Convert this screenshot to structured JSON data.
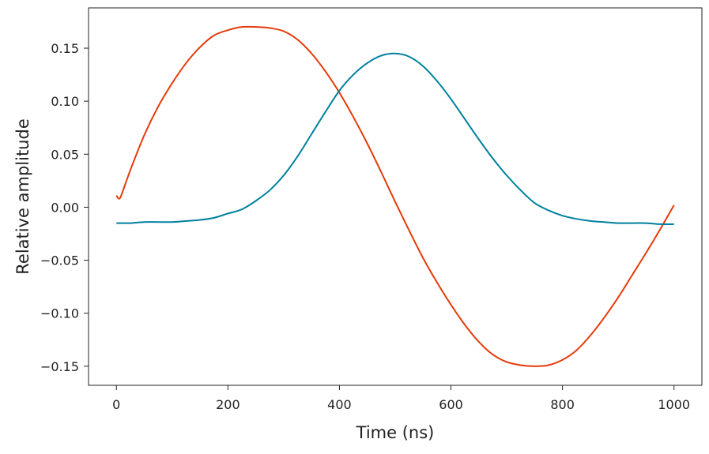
{
  "chart_data": {
    "type": "line",
    "title": "",
    "xlabel": "Time (ns)",
    "ylabel": "Relative amplitude",
    "xlim": [
      -50,
      1050
    ],
    "ylim": [
      -0.168,
      0.188
    ],
    "xticks": [
      0,
      200,
      400,
      600,
      800,
      1000
    ],
    "xtick_labels": [
      "0",
      "200",
      "400",
      "600",
      "800",
      "1000"
    ],
    "yticks": [
      0.15,
      0.1,
      0.05,
      0.0,
      -0.05,
      -0.1,
      -0.15
    ],
    "ytick_labels": [
      "0.15",
      "0.10",
      "0.05",
      "0.00",
      "−0.05",
      "−0.10",
      "−0.15"
    ],
    "grid": false,
    "legend": "none",
    "series": [
      {
        "color": "#e63a0a",
        "x": [
          0,
          5,
          10,
          25,
          50,
          75,
          100,
          125,
          150,
          175,
          200,
          225,
          250,
          275,
          300,
          325,
          350,
          375,
          400,
          425,
          450,
          475,
          500,
          525,
          550,
          575,
          600,
          625,
          650,
          675,
          700,
          725,
          750,
          775,
          800,
          825,
          850,
          875,
          900,
          925,
          950,
          975,
          1000
        ],
        "values": [
          0.011,
          0.008,
          0.013,
          0.035,
          0.068,
          0.095,
          0.117,
          0.136,
          0.151,
          0.162,
          0.167,
          0.17,
          0.17,
          0.169,
          0.166,
          0.158,
          0.145,
          0.128,
          0.108,
          0.085,
          0.06,
          0.033,
          0.005,
          -0.022,
          -0.048,
          -0.071,
          -0.092,
          -0.111,
          -0.127,
          -0.139,
          -0.146,
          -0.149,
          -0.15,
          -0.149,
          -0.144,
          -0.135,
          -0.121,
          -0.104,
          -0.085,
          -0.064,
          -0.043,
          -0.021,
          0.002
        ]
      },
      {
        "color": "#00809e",
        "x": [
          0,
          25,
          50,
          75,
          100,
          125,
          150,
          175,
          200,
          225,
          250,
          275,
          300,
          325,
          350,
          375,
          400,
          425,
          450,
          475,
          500,
          525,
          550,
          575,
          600,
          625,
          650,
          675,
          700,
          725,
          750,
          775,
          800,
          825,
          850,
          875,
          900,
          925,
          950,
          975,
          1000
        ],
        "values": [
          -0.015,
          -0.015,
          -0.014,
          -0.014,
          -0.014,
          -0.013,
          -0.012,
          -0.01,
          -0.006,
          -0.002,
          0.006,
          0.016,
          0.03,
          0.048,
          0.069,
          0.09,
          0.11,
          0.125,
          0.136,
          0.143,
          0.145,
          0.142,
          0.133,
          0.119,
          0.102,
          0.083,
          0.064,
          0.046,
          0.03,
          0.016,
          0.004,
          -0.003,
          -0.008,
          -0.011,
          -0.013,
          -0.014,
          -0.015,
          -0.015,
          -0.015,
          -0.016,
          -0.016
        ]
      }
    ]
  }
}
